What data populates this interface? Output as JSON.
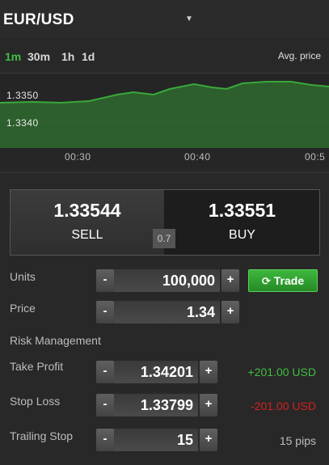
{
  "header": {
    "pair": "EUR/USD",
    "caret_icon": "triangle-down-icon"
  },
  "timeframes": {
    "items": [
      {
        "label": "1m",
        "active": true
      },
      {
        "label": "30m",
        "active": false
      },
      {
        "label": "1h",
        "active": false
      },
      {
        "label": "1d",
        "active": false
      }
    ],
    "avg_price_label": "Avg. price"
  },
  "chart": {
    "y_ticks": [
      "1.3350",
      "1.3340"
    ],
    "x_ticks": [
      "00:30",
      "00:40",
      "00:5"
    ],
    "line_color": "#3aa83a",
    "fill_color": "#2f6a2f"
  },
  "quote": {
    "sell_price": "1.33544",
    "sell_label": "SELL",
    "buy_price": "1.33551",
    "buy_label": "BUY",
    "spread": "0.7"
  },
  "form": {
    "units": {
      "label": "Units",
      "value": "100,000"
    },
    "price": {
      "label": "Price",
      "value": "1.34"
    },
    "risk_title": "Risk Management",
    "take_profit": {
      "label": "Take Profit",
      "value": "1.34201",
      "result": "+201.00 USD",
      "result_color": "#3fbf3f"
    },
    "stop_loss": {
      "label": "Stop Loss",
      "value": "1.33799",
      "result": "-201.00 USD",
      "result_color": "#d42020"
    },
    "trailing_stop": {
      "label": "Trailing Stop",
      "value": "15",
      "result": "15 pips"
    },
    "minus": "-",
    "plus": "+",
    "trade_label": "Trade",
    "trade_icon": "refresh-icon"
  }
}
